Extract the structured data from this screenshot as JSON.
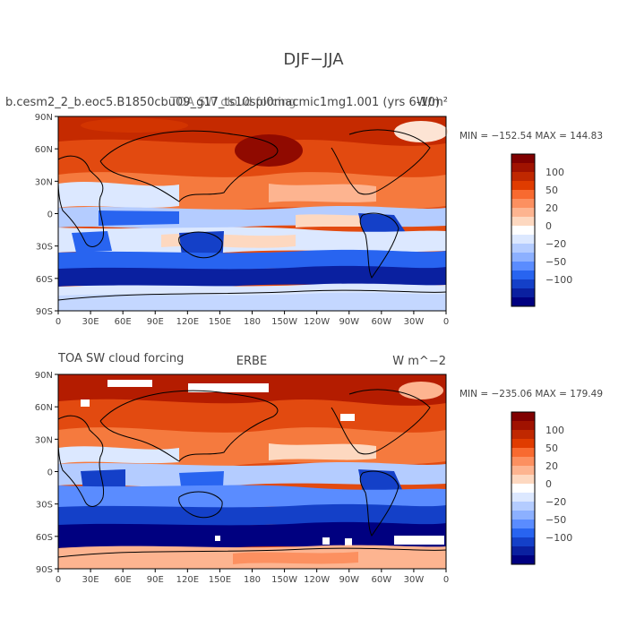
{
  "figure": {
    "title": "DJF−JJA"
  },
  "colorbar": {
    "labels": [
      "100",
      "50",
      "20",
      "0",
      "−20",
      "−50",
      "−100"
    ],
    "colors": [
      "#800000",
      "#a01200",
      "#c02800",
      "#e03c00",
      "#f86a30",
      "#fc9060",
      "#fdb490",
      "#fdd8c0",
      "#ffffff",
      "#dce8ff",
      "#b4ccff",
      "#8cb0ff",
      "#5a8cff",
      "#2864f0",
      "#1440c8",
      "#0a20a0",
      "#000080"
    ]
  },
  "lat_ticks": [
    "90N",
    "60N",
    "30N",
    "0",
    "30S",
    "60S",
    "90S"
  ],
  "lon_ticks": [
    "0",
    "30E",
    "60E",
    "90E",
    "120E",
    "150E",
    "180",
    "150W",
    "120W",
    "90W",
    "60W",
    "30W",
    "0"
  ],
  "panels": [
    {
      "left_title": "b.cesm2_2_b.eoc5.B1850cbu09_g17_ts10spl0macmic1mg1.001 (yrs 6-10)",
      "center_title": "TOA SW cloud forcing",
      "right_title": "W/m²",
      "stats": "MIN = −152.54  MAX = 144.83"
    },
    {
      "left_title": "TOA  SW  cloud  forcing",
      "center_title": "ERBE",
      "right_title": "W  m^−2",
      "stats": "MIN = −235.06  MAX = 179.49"
    }
  ]
}
